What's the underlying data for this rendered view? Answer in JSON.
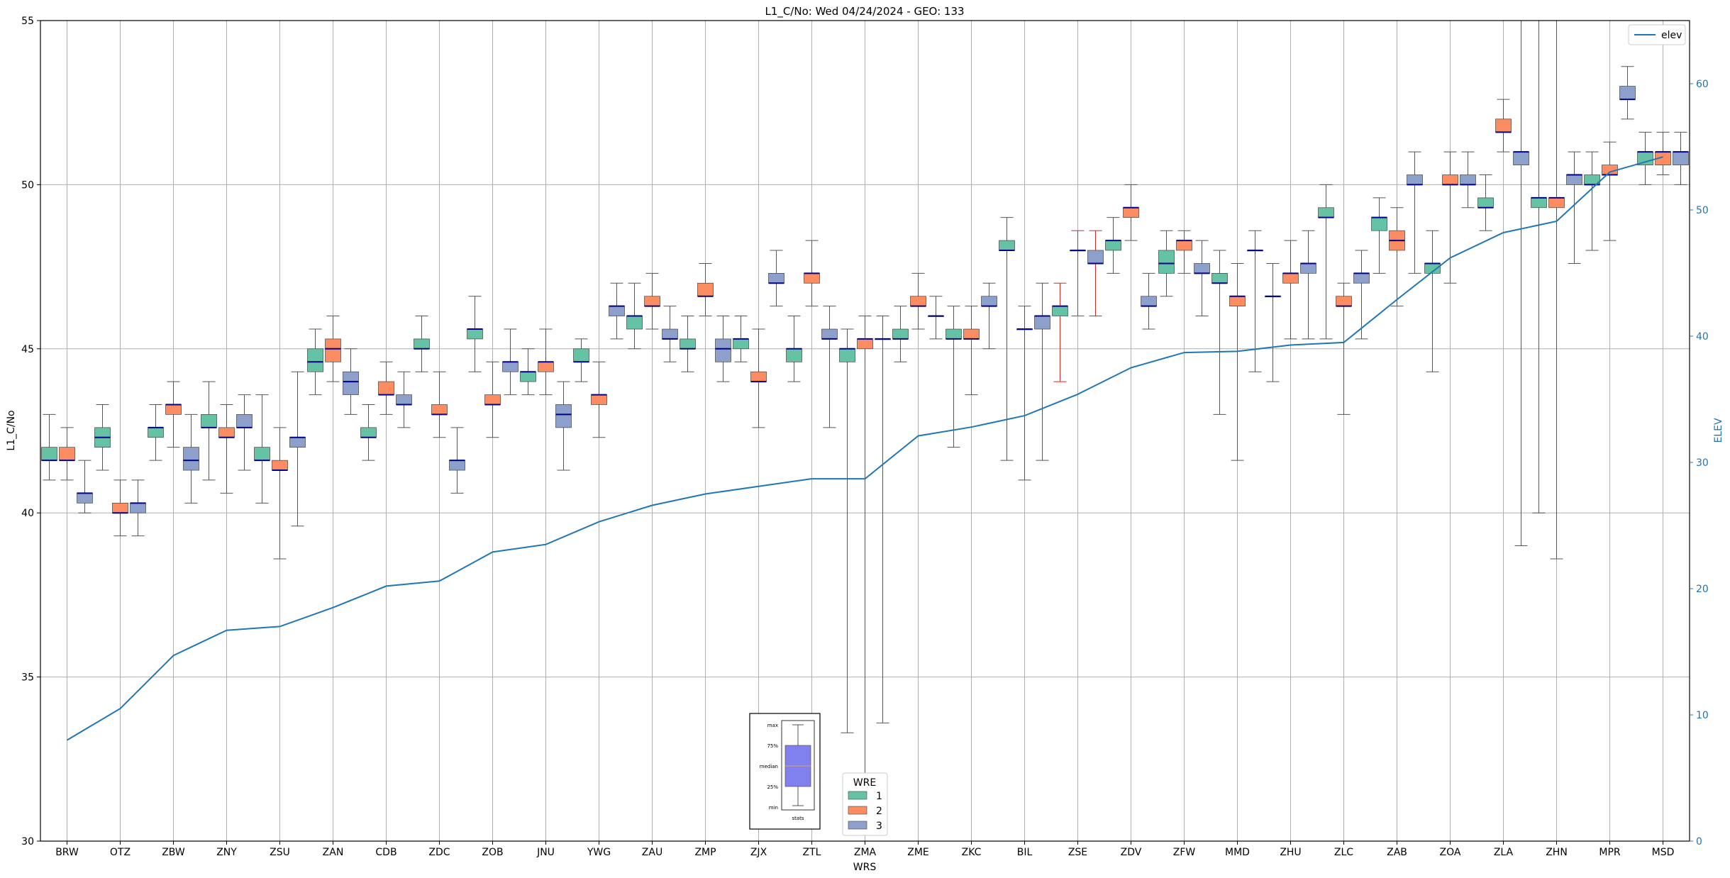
{
  "chart_data": {
    "type": "box",
    "title": "L1_C/No: Wed 04/24/2024 - GEO: 133",
    "xlabel": "WRS",
    "ylabel": "L1_C/No",
    "y2label": "ELEV",
    "ylim": [
      30,
      55
    ],
    "y2lim": [
      0,
      65
    ],
    "yticks": [
      "30",
      "35",
      "40",
      "45",
      "50",
      "55"
    ],
    "y2ticks": [
      "0",
      "10",
      "20",
      "30",
      "40",
      "50",
      "60"
    ],
    "grid": true,
    "categories": [
      "BRW",
      "OTZ",
      "ZBW",
      "ZNY",
      "ZSU",
      "ZAN",
      "CDB",
      "ZDC",
      "ZOB",
      "JNU",
      "YWG",
      "ZAU",
      "ZMP",
      "ZJX",
      "ZTL",
      "ZMA",
      "ZME",
      "ZKC",
      "BIL",
      "ZSE",
      "ZDV",
      "ZFW",
      "MMD",
      "ZHU",
      "ZLC",
      "ZAB",
      "ZOA",
      "ZLA",
      "ZHN",
      "MPR",
      "MSD"
    ],
    "colors": {
      "1": "#66c2a5",
      "2": "#fc8d62",
      "3": "#8da0cb",
      "median": "#00008b",
      "elev": "#1f77b4",
      "whisker": "#555555",
      "whisker_alt": "#d62728"
    },
    "boxes": [
      {
        "cat": "BRW",
        "wre": "1",
        "min": 41.0,
        "q1": 41.6,
        "median": 41.6,
        "q3": 42.0,
        "max": 43.0
      },
      {
        "cat": "BRW",
        "wre": "2",
        "min": 41.0,
        "q1": 41.6,
        "median": 41.6,
        "q3": 42.0,
        "max": 42.6
      },
      {
        "cat": "BRW",
        "wre": "3",
        "min": 40.0,
        "q1": 40.3,
        "median": 40.6,
        "q3": 40.6,
        "max": 41.6
      },
      {
        "cat": "OTZ",
        "wre": "1",
        "min": 41.3,
        "q1": 42.0,
        "median": 42.3,
        "q3": 42.6,
        "max": 43.3
      },
      {
        "cat": "OTZ",
        "wre": "2",
        "min": 39.3,
        "q1": 40.0,
        "median": 40.0,
        "q3": 40.3,
        "max": 41.0
      },
      {
        "cat": "OTZ",
        "wre": "3",
        "min": 39.3,
        "q1": 40.0,
        "median": 40.3,
        "q3": 40.3,
        "max": 41.0
      },
      {
        "cat": "ZBW",
        "wre": "1",
        "min": 41.6,
        "q1": 42.3,
        "median": 42.6,
        "q3": 42.6,
        "max": 43.3
      },
      {
        "cat": "ZBW",
        "wre": "2",
        "min": 42.0,
        "q1": 43.0,
        "median": 43.3,
        "q3": 43.3,
        "max": 44.0
      },
      {
        "cat": "ZBW",
        "wre": "3",
        "min": 40.3,
        "q1": 41.3,
        "median": 41.6,
        "q3": 42.0,
        "max": 43.0
      },
      {
        "cat": "ZNY",
        "wre": "1",
        "min": 41.0,
        "q1": 42.6,
        "median": 42.6,
        "q3": 43.0,
        "max": 44.0
      },
      {
        "cat": "ZNY",
        "wre": "2",
        "min": 40.6,
        "q1": 42.3,
        "median": 42.3,
        "q3": 42.6,
        "max": 43.3
      },
      {
        "cat": "ZNY",
        "wre": "3",
        "min": 41.3,
        "q1": 42.6,
        "median": 42.6,
        "q3": 43.0,
        "max": 43.6
      },
      {
        "cat": "ZSU",
        "wre": "1",
        "min": 40.3,
        "q1": 41.6,
        "median": 41.6,
        "q3": 42.0,
        "max": 43.6
      },
      {
        "cat": "ZSU",
        "wre": "2",
        "min": 38.6,
        "q1": 41.3,
        "median": 41.3,
        "q3": 41.6,
        "max": 42.6
      },
      {
        "cat": "ZSU",
        "wre": "3",
        "min": 39.6,
        "q1": 42.0,
        "median": 42.3,
        "q3": 42.3,
        "max": 44.3
      },
      {
        "cat": "ZAN",
        "wre": "1",
        "min": 43.6,
        "q1": 44.3,
        "median": 44.6,
        "q3": 45.0,
        "max": 45.6
      },
      {
        "cat": "ZAN",
        "wre": "2",
        "min": 44.0,
        "q1": 44.6,
        "median": 45.0,
        "q3": 45.3,
        "max": 46.0
      },
      {
        "cat": "ZAN",
        "wre": "3",
        "min": 43.0,
        "q1": 43.6,
        "median": 44.0,
        "q3": 44.3,
        "max": 45.0
      },
      {
        "cat": "CDB",
        "wre": "1",
        "min": 41.6,
        "q1": 42.3,
        "median": 42.3,
        "q3": 42.6,
        "max": 43.3
      },
      {
        "cat": "CDB",
        "wre": "2",
        "min": 43.0,
        "q1": 43.6,
        "median": 43.6,
        "q3": 44.0,
        "max": 44.6
      },
      {
        "cat": "CDB",
        "wre": "3",
        "min": 42.6,
        "q1": 43.3,
        "median": 43.3,
        "q3": 43.6,
        "max": 44.3
      },
      {
        "cat": "ZDC",
        "wre": "1",
        "min": 44.3,
        "q1": 45.0,
        "median": 45.0,
        "q3": 45.3,
        "max": 46.0
      },
      {
        "cat": "ZDC",
        "wre": "2",
        "min": 42.3,
        "q1": 43.0,
        "median": 43.0,
        "q3": 43.3,
        "max": 44.3
      },
      {
        "cat": "ZDC",
        "wre": "3",
        "min": 40.6,
        "q1": 41.3,
        "median": 41.6,
        "q3": 41.6,
        "max": 42.6
      },
      {
        "cat": "ZOB",
        "wre": "1",
        "min": 44.3,
        "q1": 45.3,
        "median": 45.6,
        "q3": 45.6,
        "max": 46.6
      },
      {
        "cat": "ZOB",
        "wre": "2",
        "min": 42.3,
        "q1": 43.3,
        "median": 43.3,
        "q3": 43.6,
        "max": 44.6
      },
      {
        "cat": "ZOB",
        "wre": "3",
        "min": 43.6,
        "q1": 44.3,
        "median": 44.6,
        "q3": 44.6,
        "max": 45.6
      },
      {
        "cat": "JNU",
        "wre": "1",
        "min": 43.6,
        "q1": 44.0,
        "median": 44.3,
        "q3": 44.3,
        "max": 45.0
      },
      {
        "cat": "JNU",
        "wre": "2",
        "min": 43.6,
        "q1": 44.3,
        "median": 44.6,
        "q3": 44.6,
        "max": 45.6
      },
      {
        "cat": "JNU",
        "wre": "3",
        "min": 41.3,
        "q1": 42.6,
        "median": 43.0,
        "q3": 43.3,
        "max": 44.0
      },
      {
        "cat": "YWG",
        "wre": "1",
        "min": 44.0,
        "q1": 44.6,
        "median": 44.6,
        "q3": 45.0,
        "max": 45.3
      },
      {
        "cat": "YWG",
        "wre": "2",
        "min": 42.3,
        "q1": 43.3,
        "median": 43.6,
        "q3": 43.6,
        "max": 44.6
      },
      {
        "cat": "YWG",
        "wre": "3",
        "min": 45.3,
        "q1": 46.0,
        "median": 46.3,
        "q3": 46.3,
        "max": 47.0
      },
      {
        "cat": "ZAU",
        "wre": "1",
        "min": 45.0,
        "q1": 45.6,
        "median": 46.0,
        "q3": 46.0,
        "max": 47.0
      },
      {
        "cat": "ZAU",
        "wre": "2",
        "min": 45.6,
        "q1": 46.3,
        "median": 46.3,
        "q3": 46.6,
        "max": 47.3
      },
      {
        "cat": "ZAU",
        "wre": "3",
        "min": 44.6,
        "q1": 45.3,
        "median": 45.3,
        "q3": 45.6,
        "max": 46.3
      },
      {
        "cat": "ZMP",
        "wre": "1",
        "min": 44.3,
        "q1": 45.0,
        "median": 45.0,
        "q3": 45.3,
        "max": 46.0
      },
      {
        "cat": "ZMP",
        "wre": "2",
        "min": 46.0,
        "q1": 46.6,
        "median": 46.6,
        "q3": 47.0,
        "max": 47.6
      },
      {
        "cat": "ZMP",
        "wre": "3",
        "min": 44.0,
        "q1": 44.6,
        "median": 45.0,
        "q3": 45.3,
        "max": 46.0
      },
      {
        "cat": "ZJX",
        "wre": "1",
        "min": 44.6,
        "q1": 45.0,
        "median": 45.3,
        "q3": 45.3,
        "max": 46.0
      },
      {
        "cat": "ZJX",
        "wre": "2",
        "min": 42.6,
        "q1": 44.0,
        "median": 44.0,
        "q3": 44.3,
        "max": 45.6
      },
      {
        "cat": "ZJX",
        "wre": "3",
        "min": 46.3,
        "q1": 47.0,
        "median": 47.0,
        "q3": 47.3,
        "max": 48.0
      },
      {
        "cat": "ZTL",
        "wre": "1",
        "min": 44.0,
        "q1": 44.6,
        "median": 45.0,
        "q3": 45.0,
        "max": 46.0
      },
      {
        "cat": "ZTL",
        "wre": "2",
        "min": 46.3,
        "q1": 47.0,
        "median": 47.3,
        "q3": 47.3,
        "max": 48.3
      },
      {
        "cat": "ZTL",
        "wre": "3",
        "min": 42.6,
        "q1": 45.3,
        "median": 45.3,
        "q3": 45.6,
        "max": 46.3
      },
      {
        "cat": "ZMA",
        "wre": "1",
        "min": 33.3,
        "q1": 44.6,
        "median": 45.0,
        "q3": 45.0,
        "max": 45.6
      },
      {
        "cat": "ZMA",
        "wre": "2",
        "min": 31.0,
        "q1": 45.0,
        "median": 45.3,
        "q3": 45.3,
        "max": 46.0
      },
      {
        "cat": "ZMA",
        "wre": "3",
        "min": 33.6,
        "q1": 45.3,
        "median": 45.3,
        "q3": 45.3,
        "max": 46.0
      },
      {
        "cat": "ZME",
        "wre": "1",
        "min": 44.6,
        "q1": 45.3,
        "median": 45.3,
        "q3": 45.6,
        "max": 46.3
      },
      {
        "cat": "ZME",
        "wre": "2",
        "min": 45.6,
        "q1": 46.3,
        "median": 46.3,
        "q3": 46.6,
        "max": 47.3
      },
      {
        "cat": "ZME",
        "wre": "3",
        "min": 45.3,
        "q1": 46.0,
        "median": 46.0,
        "q3": 46.0,
        "max": 46.6
      },
      {
        "cat": "ZKC",
        "wre": "1",
        "min": 42.0,
        "q1": 45.3,
        "median": 45.3,
        "q3": 45.6,
        "max": 46.3
      },
      {
        "cat": "ZKC",
        "wre": "2",
        "min": 43.6,
        "q1": 45.3,
        "median": 45.3,
        "q3": 45.6,
        "max": 46.3
      },
      {
        "cat": "ZKC",
        "wre": "3",
        "min": 45.0,
        "q1": 46.3,
        "median": 46.3,
        "q3": 46.6,
        "max": 47.0
      },
      {
        "cat": "BIL",
        "wre": "1",
        "min": 41.6,
        "q1": 48.0,
        "median": 48.0,
        "q3": 48.3,
        "max": 49.0
      },
      {
        "cat": "BIL",
        "wre": "2",
        "min": 41.0,
        "q1": 45.6,
        "median": 45.6,
        "q3": 45.6,
        "max": 46.3
      },
      {
        "cat": "BIL",
        "wre": "3",
        "min": 41.6,
        "q1": 45.6,
        "median": 46.0,
        "q3": 46.0,
        "max": 47.0
      },
      {
        "cat": "ZSE",
        "wre": "1",
        "min": 44.0,
        "q1": 46.0,
        "median": 46.3,
        "q3": 46.3,
        "max": 47.0,
        "alt": true
      },
      {
        "cat": "ZSE",
        "wre": "2",
        "min": 46.0,
        "q1": 48.0,
        "median": 48.0,
        "q3": 48.0,
        "max": 48.6,
        "alt": true
      },
      {
        "cat": "ZSE",
        "wre": "3",
        "min": 46.0,
        "q1": 47.6,
        "median": 47.6,
        "q3": 48.0,
        "max": 48.6,
        "alt": true
      },
      {
        "cat": "ZDV",
        "wre": "1",
        "min": 47.3,
        "q1": 48.0,
        "median": 48.3,
        "q3": 48.3,
        "max": 49.0
      },
      {
        "cat": "ZDV",
        "wre": "2",
        "min": 48.3,
        "q1": 49.0,
        "median": 49.3,
        "q3": 49.3,
        "max": 50.0
      },
      {
        "cat": "ZDV",
        "wre": "3",
        "min": 45.6,
        "q1": 46.3,
        "median": 46.3,
        "q3": 46.6,
        "max": 47.3
      },
      {
        "cat": "ZFW",
        "wre": "1",
        "min": 46.6,
        "q1": 47.3,
        "median": 47.6,
        "q3": 48.0,
        "max": 48.6
      },
      {
        "cat": "ZFW",
        "wre": "2",
        "min": 47.3,
        "q1": 48.0,
        "median": 48.3,
        "q3": 48.3,
        "max": 48.6
      },
      {
        "cat": "ZFW",
        "wre": "3",
        "min": 46.0,
        "q1": 47.3,
        "median": 47.3,
        "q3": 47.6,
        "max": 48.3
      },
      {
        "cat": "MMD",
        "wre": "1",
        "min": 43.0,
        "q1": 47.0,
        "median": 47.0,
        "q3": 47.3,
        "max": 48.0
      },
      {
        "cat": "MMD",
        "wre": "2",
        "min": 41.6,
        "q1": 46.3,
        "median": 46.6,
        "q3": 46.6,
        "max": 47.6
      },
      {
        "cat": "MMD",
        "wre": "3",
        "min": 44.3,
        "q1": 48.0,
        "median": 48.0,
        "q3": 48.0,
        "max": 48.6
      },
      {
        "cat": "ZHU",
        "wre": "1",
        "min": 44.0,
        "q1": 46.6,
        "median": 46.6,
        "q3": 46.6,
        "max": 47.6
      },
      {
        "cat": "ZHU",
        "wre": "2",
        "min": 45.3,
        "q1": 47.0,
        "median": 47.3,
        "q3": 47.3,
        "max": 48.3
      },
      {
        "cat": "ZHU",
        "wre": "3",
        "min": 45.3,
        "q1": 47.3,
        "median": 47.6,
        "q3": 47.6,
        "max": 48.6
      },
      {
        "cat": "ZLC",
        "wre": "1",
        "min": 45.3,
        "q1": 49.0,
        "median": 49.0,
        "q3": 49.3,
        "max": 50.0
      },
      {
        "cat": "ZLC",
        "wre": "2",
        "min": 43.0,
        "q1": 46.3,
        "median": 46.3,
        "q3": 46.6,
        "max": 47.0
      },
      {
        "cat": "ZLC",
        "wre": "3",
        "min": 45.3,
        "q1": 47.0,
        "median": 47.3,
        "q3": 47.3,
        "max": 48.0
      },
      {
        "cat": "ZAB",
        "wre": "1",
        "min": 47.3,
        "q1": 48.6,
        "median": 49.0,
        "q3": 49.0,
        "max": 49.6
      },
      {
        "cat": "ZAB",
        "wre": "2",
        "min": 46.3,
        "q1": 48.0,
        "median": 48.3,
        "q3": 48.6,
        "max": 49.3
      },
      {
        "cat": "ZAB",
        "wre": "3",
        "min": 47.3,
        "q1": 50.0,
        "median": 50.0,
        "q3": 50.3,
        "max": 51.0
      },
      {
        "cat": "ZOA",
        "wre": "1",
        "min": 44.3,
        "q1": 47.3,
        "median": 47.6,
        "q3": 47.6,
        "max": 48.6
      },
      {
        "cat": "ZOA",
        "wre": "2",
        "min": 47.0,
        "q1": 50.0,
        "median": 50.0,
        "q3": 50.3,
        "max": 51.0
      },
      {
        "cat": "ZOA",
        "wre": "3",
        "min": 49.3,
        "q1": 50.0,
        "median": 50.0,
        "q3": 50.3,
        "max": 51.0
      },
      {
        "cat": "ZLA",
        "wre": "1",
        "min": 48.6,
        "q1": 49.3,
        "median": 49.3,
        "q3": 49.6,
        "max": 50.3
      },
      {
        "cat": "ZLA",
        "wre": "2",
        "min": 51.0,
        "q1": 51.6,
        "median": 51.6,
        "q3": 52.0,
        "max": 52.6
      },
      {
        "cat": "ZLA",
        "wre": "3",
        "min": 39.0,
        "q1": 50.6,
        "median": 51.0,
        "q3": 51.0,
        "max": 55.0
      },
      {
        "cat": "ZHN",
        "wre": "1",
        "min": 40.0,
        "q1": 49.3,
        "median": 49.6,
        "q3": 49.6,
        "max": 55.0
      },
      {
        "cat": "ZHN",
        "wre": "2",
        "min": 38.6,
        "q1": 49.3,
        "median": 49.6,
        "q3": 49.6,
        "max": 55.0
      },
      {
        "cat": "ZHN",
        "wre": "3",
        "min": 47.6,
        "q1": 50.0,
        "median": 50.3,
        "q3": 50.3,
        "max": 51.0
      },
      {
        "cat": "MPR",
        "wre": "1",
        "min": 48.0,
        "q1": 50.0,
        "median": 50.0,
        "q3": 50.3,
        "max": 51.0
      },
      {
        "cat": "MPR",
        "wre": "2",
        "min": 48.3,
        "q1": 50.3,
        "median": 50.3,
        "q3": 50.6,
        "max": 51.3
      },
      {
        "cat": "MPR",
        "wre": "3",
        "min": 52.0,
        "q1": 52.6,
        "median": 52.6,
        "q3": 53.0,
        "max": 53.6
      },
      {
        "cat": "MSD",
        "wre": "1",
        "min": 50.0,
        "q1": 50.6,
        "median": 51.0,
        "q3": 51.0,
        "max": 51.6
      },
      {
        "cat": "MSD",
        "wre": "2",
        "min": 50.3,
        "q1": 50.6,
        "median": 51.0,
        "q3": 51.0,
        "max": 51.6
      },
      {
        "cat": "MSD",
        "wre": "3",
        "min": 50.0,
        "q1": 50.6,
        "median": 51.0,
        "q3": 51.0,
        "max": 51.6
      }
    ],
    "elev": {
      "name": "elev",
      "values": [
        8.0,
        10.5,
        14.7,
        16.7,
        17.0,
        18.5,
        20.2,
        20.6,
        22.9,
        23.5,
        25.3,
        26.6,
        27.5,
        28.1,
        28.7,
        28.7,
        32.1,
        32.8,
        33.7,
        35.4,
        37.5,
        38.7,
        38.8,
        39.3,
        39.5,
        42.9,
        46.2,
        48.2,
        49.1,
        53.0,
        54.2
      ]
    },
    "legend": {
      "title": "WRE",
      "entries": [
        "1",
        "2",
        "3"
      ],
      "placement": "bottom-center"
    },
    "elev_legend": {
      "label": "elev",
      "placement": "top-right"
    },
    "key_inset": {
      "labels": [
        "max",
        "75%",
        "median",
        "25%",
        "min"
      ],
      "caption": "stats"
    }
  }
}
